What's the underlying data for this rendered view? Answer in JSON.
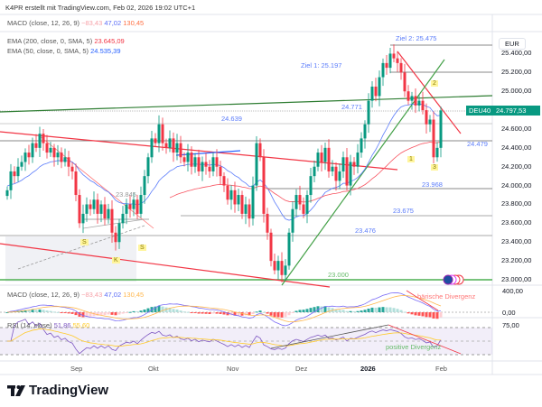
{
  "header": {
    "caption": "K4PR erstellt mit TradingView.com, Feb 02, 2026 19:02 UTC+1"
  },
  "legend": {
    "macd_top": {
      "label": "MACD (close, 12, 26, 9)",
      "v1": "−83,43",
      "v2": "47,02",
      "v3": "130,45"
    },
    "ema200": {
      "label": "EMA (200, close, 0, SMA, 5)",
      "value": "23.645,09"
    },
    "ema50": {
      "label": "EMA (50, close, 0, SMA, 5)",
      "value": "24.535,39"
    },
    "macd": {
      "label": "MACD (close, 12, 26, 9)",
      "v1": "−83,43",
      "v2": "47,02",
      "v3": "130,45"
    },
    "rsi": {
      "label": "RSI (14, close)",
      "v1": "51,86",
      "v2": "55,60"
    }
  },
  "price_axis": {
    "currency": "EUR",
    "labels": [
      "25.400,00",
      "25.200,00",
      "25.000,00",
      "24.600,00",
      "24.400,00",
      "24.200,00",
      "24.000,00",
      "23.800,00",
      "23.600,00",
      "23.400,00",
      "23.200,00",
      "23.000,00"
    ]
  },
  "symbol_tag": {
    "symbol": "DEU40",
    "price": "24.797,53"
  },
  "macd_axis": [
    "400,00",
    "0,00"
  ],
  "rsi_axis": [
    "75,00"
  ],
  "time_axis": [
    "Sep",
    "Okt",
    "Nov",
    "Dez",
    "2026",
    "Feb"
  ],
  "annotations": {
    "ziel2": "Ziel 2: 25.475",
    "ziel1": "Ziel 1: 25.197",
    "l24771": "24.771",
    "l24639": "24.639",
    "l24479": "24.479",
    "l23968": "23.968",
    "l23675": "23.675",
    "l23476": "23.476",
    "l23000": "23.000",
    "l23845": "23.845",
    "s1": "S",
    "k": "K",
    "s2": "S",
    "w1": "1",
    "w2": "2",
    "w3": "3",
    "bear_div": "bärische Divergenz",
    "pos_div": "positive Divergenz"
  },
  "brand": {
    "name": "TradingView"
  },
  "colors": {
    "up": "#089981",
    "down": "#f23645",
    "ema50": "#5b7cfa",
    "ema200": "#f7525f",
    "macd": "#7b6cf6",
    "signal": "#ffb74d",
    "rsi": "#7e57c2"
  },
  "chart_data": {
    "type": "candlestick",
    "symbol": "DEU40",
    "ylim": [
      22900,
      25600
    ],
    "x_ticks": [
      "Sep",
      "Okt",
      "Nov",
      "Dez",
      "2026",
      "Feb"
    ],
    "closes": [
      23950,
      24150,
      24100,
      24200,
      24250,
      24350,
      24300,
      24450,
      24400,
      24550,
      24450,
      24350,
      24400,
      24300,
      24350,
      24250,
      24300,
      24200,
      24150,
      23900,
      23600,
      23700,
      23800,
      23750,
      23850,
      23700,
      23800,
      23650,
      23750,
      23500,
      23400,
      23600,
      23700,
      23800,
      23750,
      23850,
      23700,
      23900,
      24100,
      24300,
      24500,
      24450,
      24650,
      24450,
      24400,
      24500,
      24350,
      24450,
      24300,
      24250,
      24350,
      24200,
      24300,
      24150,
      24250,
      24200,
      24150,
      24300,
      24200,
      24100,
      24000,
      23850,
      23950,
      23800,
      23900,
      23700,
      23800,
      23650,
      24000,
      24450,
      24300,
      23700,
      23500,
      23200,
      23100,
      23200,
      23050,
      23150,
      23500,
      23750,
      23900,
      23800,
      23700,
      23900,
      24100,
      24200,
      24350,
      24250,
      24400,
      24150,
      24200,
      24050,
      24150,
      24300,
      24000,
      24250,
      24200,
      24350,
      24500,
      24650,
      24900,
      25050,
      24950,
      25150,
      25300,
      25250,
      25400,
      25350,
      25300,
      25200,
      25000,
      24900,
      24950,
      24850,
      24900,
      24800,
      24650,
      24700,
      24300,
      24400,
      24797.53
    ]
  }
}
